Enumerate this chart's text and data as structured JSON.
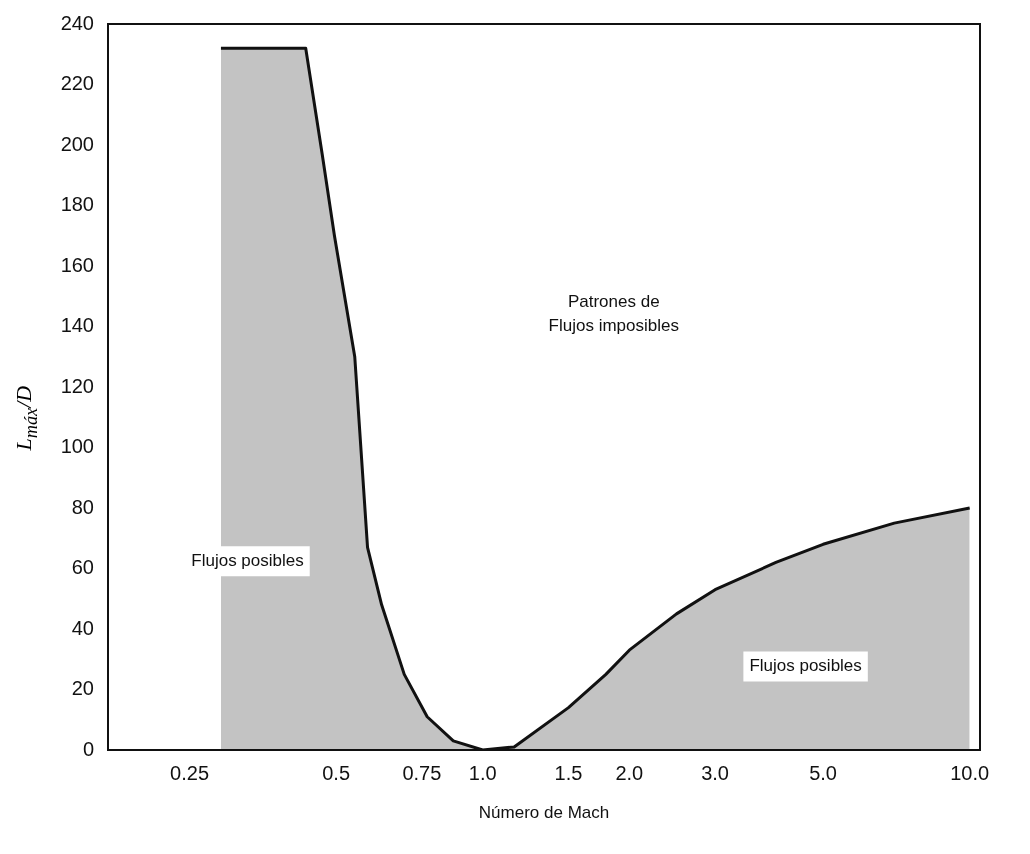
{
  "chart_data": {
    "type": "line",
    "xlabel": "Número de Mach",
    "ylabel": "L$_{máx}$/D",
    "log": "x",
    "xlim": [
      0.17,
      10.5
    ],
    "ylim": [
      0,
      240
    ],
    "xticks": [
      0.25,
      0.5,
      0.75,
      {
        "value": 1,
        "label": "1.0"
      },
      1.5,
      {
        "value": 2,
        "label": "2.0"
      },
      {
        "value": 3,
        "label": "3.0"
      },
      {
        "value": 5,
        "label": "5.0"
      },
      {
        "value": 10,
        "label": "10.0"
      }
    ],
    "yticks": [
      0,
      20,
      40,
      60,
      80,
      100,
      120,
      140,
      160,
      180,
      200,
      220,
      240
    ],
    "grid": false,
    "legend": false,
    "series": [
      {
        "type": "area",
        "color": "#111111",
        "x": [
          0.29,
          0.433,
          0.468,
          0.496,
          0.546,
          0.58,
          0.62,
          0.69,
          0.769,
          0.87,
          1.0,
          1.16,
          1.5,
          1.79,
          2.0,
          2.5,
          3.0,
          4.0,
          5.0,
          7.0,
          10.0
        ],
        "values": [
          232,
          232,
          197,
          170,
          130,
          67,
          48,
          25,
          11,
          3,
          0,
          1,
          14,
          25,
          33,
          45,
          53,
          62,
          68,
          75,
          80
        ]
      }
    ],
    "annotations": [
      "Patrones de\nFlujos imposibles",
      "Flujos posibles",
      "Flujos posibles"
    ]
  }
}
